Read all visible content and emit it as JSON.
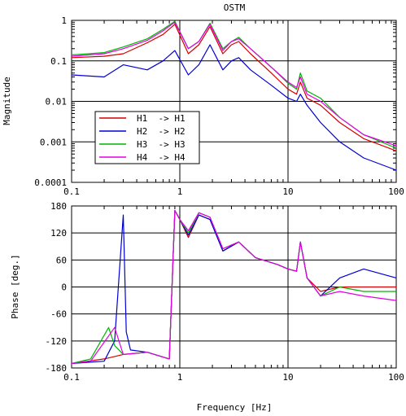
{
  "chart_data": [
    {
      "type": "line",
      "title": "OSTM",
      "xlabel": "",
      "ylabel": "Magnitude",
      "xscale": "log",
      "yscale": "log",
      "xlim": [
        0.1,
        100
      ],
      "ylim": [
        0.0001,
        1
      ],
      "grid": true,
      "xtick_labels": [
        "0.1",
        "1",
        "10",
        "100"
      ],
      "ytick_labels": [
        "0.0001",
        "0.001",
        "0.01",
        "0.1",
        "1"
      ],
      "legend_position": "center-left",
      "series": [
        {
          "name": "H1  -> H1",
          "color": "#d40000",
          "x": [
            0.1,
            0.2,
            0.3,
            0.5,
            0.7,
            0.9,
            1.2,
            1.5,
            1.9,
            2.5,
            3.0,
            3.5,
            4.5,
            7,
            10,
            12,
            13,
            15,
            20,
            30,
            50,
            100
          ],
          "y": [
            0.12,
            0.13,
            0.15,
            0.28,
            0.45,
            0.8,
            0.15,
            0.25,
            0.7,
            0.15,
            0.25,
            0.3,
            0.15,
            0.05,
            0.02,
            0.015,
            0.03,
            0.012,
            0.008,
            0.003,
            0.0012,
            0.0006
          ]
        },
        {
          "name": "H2  -> H2",
          "color": "#0000d4",
          "x": [
            0.1,
            0.2,
            0.3,
            0.5,
            0.7,
            0.9,
            1.2,
            1.5,
            1.9,
            2.5,
            3.0,
            3.5,
            4.5,
            7,
            10,
            12,
            13,
            15,
            20,
            30,
            50,
            100
          ],
          "y": [
            0.045,
            0.04,
            0.08,
            0.06,
            0.1,
            0.18,
            0.045,
            0.08,
            0.25,
            0.06,
            0.1,
            0.12,
            0.06,
            0.025,
            0.012,
            0.01,
            0.015,
            0.008,
            0.003,
            0.001,
            0.0004,
            0.0002
          ]
        },
        {
          "name": "H3  -> H3",
          "color": "#00b400",
          "x": [
            0.1,
            0.2,
            0.3,
            0.5,
            0.7,
            0.9,
            1.2,
            1.5,
            1.9,
            2.5,
            3.0,
            3.5,
            4.5,
            7,
            10,
            12,
            13,
            15,
            20,
            30,
            50,
            100
          ],
          "y": [
            0.14,
            0.16,
            0.22,
            0.35,
            0.6,
            0.95,
            0.2,
            0.3,
            0.85,
            0.2,
            0.3,
            0.38,
            0.2,
            0.07,
            0.028,
            0.02,
            0.05,
            0.018,
            0.012,
            0.004,
            0.0015,
            0.0007
          ]
        },
        {
          "name": "H4  -> H4",
          "color": "#e400e4",
          "x": [
            0.1,
            0.2,
            0.3,
            0.5,
            0.7,
            0.9,
            1.2,
            1.5,
            1.9,
            2.5,
            3.0,
            3.5,
            4.5,
            7,
            10,
            12,
            13,
            15,
            20,
            30,
            50,
            100
          ],
          "y": [
            0.13,
            0.15,
            0.2,
            0.32,
            0.55,
            0.9,
            0.2,
            0.3,
            0.8,
            0.18,
            0.3,
            0.35,
            0.2,
            0.07,
            0.03,
            0.022,
            0.04,
            0.015,
            0.01,
            0.004,
            0.0015,
            0.0008
          ]
        }
      ]
    },
    {
      "type": "line",
      "title": "",
      "xlabel": "Frequency [Hz]",
      "ylabel": "Phase [deg.]",
      "xscale": "log",
      "yscale": "linear",
      "xlim": [
        0.1,
        100
      ],
      "ylim": [
        -180,
        180
      ],
      "grid": true,
      "xtick_labels": [
        "0.1",
        "1",
        "10",
        "100"
      ],
      "ytick_labels": [
        "180",
        "120",
        "60",
        "0",
        "-60",
        "-120",
        "-180"
      ],
      "series": [
        {
          "name": "H1  -> H1",
          "color": "#d40000",
          "x": [
            0.1,
            0.2,
            0.3,
            0.5,
            0.8,
            0.9,
            1.0,
            1.2,
            1.5,
            1.9,
            2.5,
            3.5,
            5,
            8,
            10,
            12,
            13,
            15,
            20,
            30,
            50,
            100
          ],
          "y": [
            -170,
            -160,
            -150,
            -145,
            -160,
            170,
            150,
            110,
            160,
            150,
            80,
            100,
            65,
            50,
            40,
            35,
            100,
            20,
            -10,
            0,
            0,
            0
          ]
        },
        {
          "name": "H2  -> H2",
          "color": "#0000d4",
          "x": [
            0.1,
            0.2,
            0.25,
            0.3,
            0.32,
            0.35,
            0.5,
            0.8,
            0.9,
            1.0,
            1.2,
            1.5,
            1.9,
            2.5,
            3.5,
            5,
            8,
            10,
            12,
            13,
            15,
            20,
            30,
            50,
            100
          ],
          "y": [
            -170,
            -165,
            -120,
            160,
            -100,
            -140,
            -145,
            -160,
            170,
            150,
            115,
            160,
            150,
            80,
            100,
            65,
            50,
            40,
            35,
            100,
            20,
            -20,
            20,
            40,
            20
          ]
        },
        {
          "name": "H3  -> H3",
          "color": "#00b400",
          "x": [
            0.1,
            0.15,
            0.22,
            0.25,
            0.3,
            0.5,
            0.8,
            0.9,
            1.0,
            1.2,
            1.5,
            1.9,
            2.5,
            3.5,
            5,
            8,
            10,
            12,
            13,
            15,
            20,
            30,
            50,
            100
          ],
          "y": [
            -170,
            -160,
            -90,
            -130,
            -150,
            -145,
            -160,
            170,
            150,
            120,
            165,
            155,
            85,
            100,
            65,
            50,
            40,
            35,
            100,
            20,
            -20,
            0,
            -10,
            -10
          ]
        },
        {
          "name": "H4  -> H4",
          "color": "#e400e4",
          "x": [
            0.1,
            0.15,
            0.25,
            0.3,
            0.5,
            0.8,
            0.9,
            1.0,
            1.2,
            1.5,
            1.9,
            2.5,
            3.5,
            5,
            8,
            10,
            12,
            13,
            15,
            20,
            30,
            50,
            100
          ],
          "y": [
            -170,
            -165,
            -90,
            -150,
            -145,
            -160,
            170,
            150,
            125,
            165,
            155,
            85,
            100,
            65,
            50,
            40,
            35,
            100,
            20,
            -20,
            -10,
            -20,
            -30
          ]
        }
      ]
    }
  ]
}
